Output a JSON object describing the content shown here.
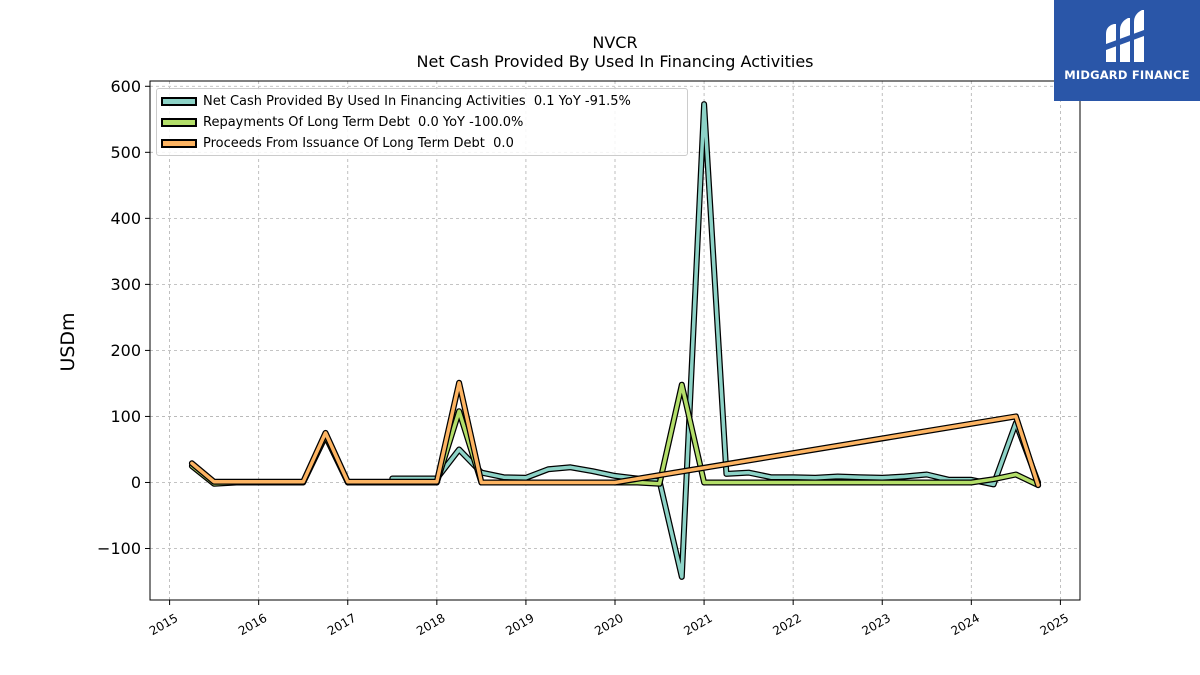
{
  "chart_data": {
    "type": "line",
    "title": "NVCR",
    "subtitle": "Net Cash Provided By Used In Financing Activities",
    "xlabel": "",
    "ylabel": "USDm",
    "xlim": [
      2014.78,
      2025.22
    ],
    "ylim": [
      -178,
      608
    ],
    "x_ticks": [
      2015,
      2016,
      2017,
      2018,
      2019,
      2020,
      2021,
      2022,
      2023,
      2024,
      2025
    ],
    "y_ticks": [
      -100,
      0,
      100,
      200,
      300,
      400,
      500,
      600
    ],
    "y_tick_labels": [
      "−100",
      "0",
      "100",
      "200",
      "300",
      "400",
      "500",
      "600"
    ],
    "grid": true,
    "legend_position": "top-left",
    "series": [
      {
        "name": "Net Cash Provided By Used In Financing Activities",
        "legend_label": "Net Cash Provided By Used In Financing Activities  0.1 YoY -91.5%",
        "color": "#8dd3c7",
        "points": [
          [
            2017.5,
            6
          ],
          [
            2018.0,
            6
          ],
          [
            2018.25,
            50
          ],
          [
            2018.5,
            15
          ],
          [
            2018.75,
            8
          ],
          [
            2019.0,
            7
          ],
          [
            2019.25,
            20
          ],
          [
            2019.5,
            23
          ],
          [
            2019.75,
            17
          ],
          [
            2020.0,
            10
          ],
          [
            2020.25,
            6
          ],
          [
            2020.5,
            2
          ],
          [
            2020.75,
            -143
          ],
          [
            2021.0,
            573
          ],
          [
            2021.25,
            13
          ],
          [
            2021.5,
            15
          ],
          [
            2021.75,
            8
          ],
          [
            2022.0,
            8
          ],
          [
            2022.25,
            7
          ],
          [
            2022.5,
            9
          ],
          [
            2022.75,
            8
          ],
          [
            2023.0,
            7
          ],
          [
            2023.25,
            9
          ],
          [
            2023.5,
            12
          ],
          [
            2023.75,
            4
          ],
          [
            2024.0,
            4
          ],
          [
            2024.25,
            -3
          ],
          [
            2024.5,
            90
          ],
          [
            2024.75,
            0
          ]
        ]
      },
      {
        "name": "Repayments Of Long Term Debt",
        "legend_label": "Repayments Of Long Term Debt  0.0 YoY -100.0%",
        "color": "#b3de69",
        "points": [
          [
            2015.25,
            25
          ],
          [
            2015.5,
            -2
          ],
          [
            2015.75,
            0
          ],
          [
            2016.0,
            0
          ],
          [
            2016.25,
            0
          ],
          [
            2016.5,
            0
          ],
          [
            2016.75,
            70
          ],
          [
            2017.0,
            0
          ],
          [
            2017.25,
            0
          ],
          [
            2017.5,
            0
          ],
          [
            2017.75,
            0
          ],
          [
            2018.0,
            0
          ],
          [
            2018.25,
            108
          ],
          [
            2018.5,
            0
          ],
          [
            2018.75,
            0
          ],
          [
            2019.0,
            0
          ],
          [
            2019.25,
            0
          ],
          [
            2019.5,
            0
          ],
          [
            2019.75,
            0
          ],
          [
            2020.0,
            0
          ],
          [
            2020.25,
            0
          ],
          [
            2020.5,
            -2
          ],
          [
            2020.75,
            148
          ],
          [
            2021.0,
            0
          ],
          [
            2021.25,
            0
          ],
          [
            2021.5,
            0
          ],
          [
            2021.75,
            0
          ],
          [
            2022.0,
            0
          ],
          [
            2022.25,
            0
          ],
          [
            2022.5,
            0
          ],
          [
            2022.75,
            0
          ],
          [
            2023.0,
            0
          ],
          [
            2023.25,
            0
          ],
          [
            2023.5,
            0
          ],
          [
            2023.75,
            0
          ],
          [
            2024.0,
            0
          ],
          [
            2024.25,
            5
          ],
          [
            2024.5,
            12
          ],
          [
            2024.75,
            -4
          ]
        ]
      },
      {
        "name": "Proceeds From Issuance Of Long Term Debt",
        "legend_label": "Proceeds From Issuance Of Long Term Debt  0.0",
        "color": "#fdb462",
        "points": [
          [
            2015.25,
            29
          ],
          [
            2015.5,
            1
          ],
          [
            2015.75,
            1
          ],
          [
            2016.0,
            1
          ],
          [
            2016.25,
            1
          ],
          [
            2016.5,
            1
          ],
          [
            2016.75,
            75
          ],
          [
            2017.0,
            1
          ],
          [
            2017.25,
            1
          ],
          [
            2017.5,
            1
          ],
          [
            2017.75,
            1
          ],
          [
            2018.0,
            1
          ],
          [
            2018.25,
            151
          ],
          [
            2018.5,
            0
          ],
          [
            2018.75,
            0
          ],
          [
            2019.0,
            0
          ],
          [
            2019.25,
            0
          ],
          [
            2019.5,
            0
          ],
          [
            2019.75,
            0
          ],
          [
            2020.0,
            0
          ],
          [
            2024.5,
            100
          ],
          [
            2024.75,
            -4
          ]
        ]
      }
    ]
  },
  "logo": {
    "text": "MIDGARD FINANCE",
    "background": "#2a56a8"
  }
}
